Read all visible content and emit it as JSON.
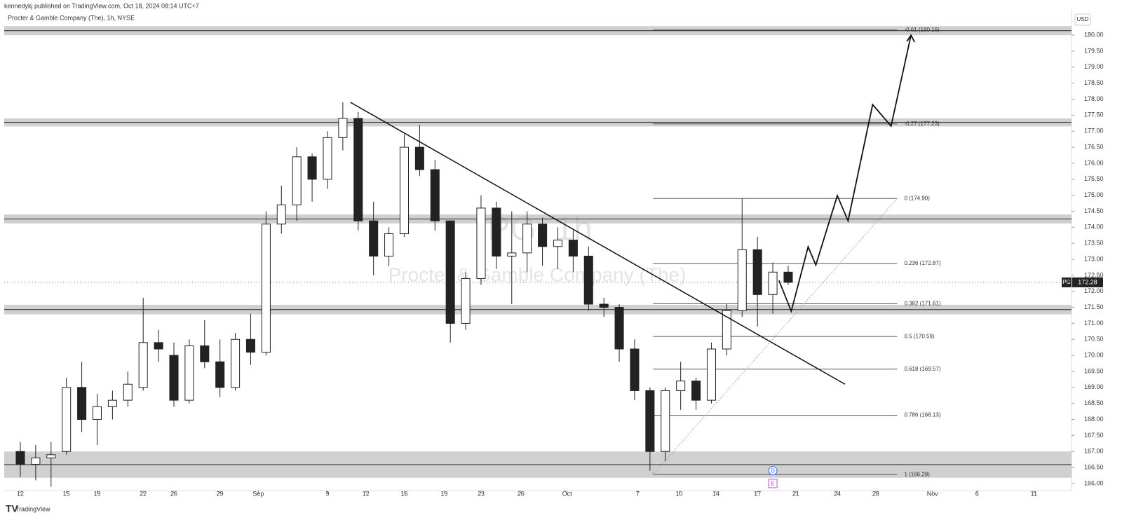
{
  "header": {
    "publisher": "kennedykj published on TradingView.com, Oct 18, 2024 08:14 UTC+7",
    "brand": "TradingView"
  },
  "chart_data": {
    "type": "candlestick",
    "title": "Procter & Gamble Company (The), 1h, NYSE",
    "watermark": "PG, 1h",
    "watermark_subtitle": "Procter & Gamble Company (The)",
    "currency": "USD",
    "symbol": "PG",
    "last_price": 172.28,
    "color_up": "#ffffff",
    "color_down": "#222222",
    "x": [
      0,
      1,
      2,
      3,
      4,
      5,
      6,
      7,
      8,
      9,
      10,
      11,
      12,
      13,
      14,
      15,
      16,
      17,
      18,
      19,
      20,
      21,
      22,
      23,
      24,
      25,
      26,
      27,
      28,
      29,
      30,
      31,
      32,
      33,
      34,
      35,
      36,
      37,
      38,
      39,
      40,
      41,
      42,
      43,
      44,
      45,
      46,
      47,
      48,
      49,
      50
    ],
    "open": [
      167,
      166.6,
      166.8,
      167,
      169,
      168,
      168.4,
      168.6,
      169,
      170.4,
      170,
      168.6,
      170.3,
      169.8,
      169,
      170.5,
      170.1,
      174.1,
      174.7,
      176.2,
      175.5,
      176.8,
      177.4,
      174.2,
      173.1,
      173.8,
      176.5,
      175.8,
      174.2,
      171,
      172.4,
      174.6,
      173.1,
      173.2,
      174.1,
      173.4,
      173.6,
      173.1,
      171.6,
      171.5,
      170.2,
      168.9,
      167,
      168.9,
      169.2,
      168.6,
      170.2,
      171.4,
      173.3,
      171.9,
      172.6
    ],
    "high": [
      167.3,
      167.2,
      167.3,
      169.3,
      169.8,
      168.8,
      168.9,
      169.5,
      171.8,
      170.8,
      170.4,
      170.5,
      171.1,
      170.5,
      170.7,
      171.3,
      174.5,
      175.3,
      176.5,
      176.3,
      177,
      177.9,
      177.6,
      174.8,
      174,
      176.9,
      177.2,
      176.1,
      174.2,
      172.6,
      175,
      174.8,
      174.5,
      174.5,
      174.3,
      174,
      173.9,
      173.4,
      171.8,
      171.6,
      170.5,
      169,
      169,
      169.8,
      169.3,
      170.4,
      171.6,
      174.9,
      173.7,
      172.9,
      172.8
    ],
    "low": [
      166.2,
      166.1,
      165.9,
      166.9,
      167.6,
      167.2,
      168,
      168.4,
      168.9,
      169.8,
      168.4,
      168.5,
      169.6,
      168.7,
      168.9,
      169.7,
      170,
      173.8,
      174.2,
      174.8,
      175.2,
      176.4,
      173.9,
      172.5,
      172.8,
      173.7,
      175.6,
      173.9,
      170.4,
      170.8,
      172.2,
      172.7,
      171.6,
      172.6,
      172.8,
      172.7,
      172.6,
      171.4,
      171.2,
      169.8,
      168.6,
      166.4,
      166.7,
      168.3,
      168.3,
      168.5,
      170,
      171.2,
      170.9,
      171.3,
      172.2
    ],
    "close": [
      166.6,
      166.8,
      166.9,
      169,
      168,
      168.4,
      168.6,
      169.1,
      170.4,
      170.2,
      168.6,
      170.3,
      169.8,
      169,
      170.5,
      170.1,
      174.1,
      174.7,
      176.2,
      175.5,
      176.8,
      177.4,
      174.2,
      173.1,
      173.8,
      176.5,
      175.8,
      174.2,
      171,
      172.4,
      174.6,
      173.1,
      173.2,
      174.1,
      173.4,
      173.6,
      173.1,
      171.6,
      171.5,
      170.2,
      168.9,
      167,
      168.9,
      169.2,
      168.6,
      170.2,
      171.4,
      173.3,
      171.9,
      172.6,
      172.28
    ],
    "xlim": [
      -1.05,
      68.45
    ],
    "xticks": [
      {
        "value": 0,
        "label": "12"
      },
      {
        "value": 3,
        "label": "15"
      },
      {
        "value": 5,
        "label": "19"
      },
      {
        "value": 8,
        "label": "22"
      },
      {
        "value": 10,
        "label": "26"
      },
      {
        "value": 13,
        "label": "29"
      },
      {
        "value": 15.5,
        "label": "Sep"
      },
      {
        "value": 20,
        "label": "9"
      },
      {
        "value": 22.5,
        "label": "12"
      },
      {
        "value": 25,
        "label": "16"
      },
      {
        "value": 27.6,
        "label": "19"
      },
      {
        "value": 30,
        "label": "23"
      },
      {
        "value": 32.6,
        "label": "26"
      },
      {
        "value": 35.6,
        "label": "Oct"
      },
      {
        "value": 40.2,
        "label": "7"
      },
      {
        "value": 42.9,
        "label": "10"
      },
      {
        "value": 45.3,
        "label": "14"
      },
      {
        "value": 48,
        "label": "17"
      },
      {
        "value": 50.5,
        "label": "21"
      },
      {
        "value": 53.2,
        "label": "24"
      },
      {
        "value": 55.7,
        "label": "28"
      },
      {
        "value": 59.4,
        "label": "Nov"
      },
      {
        "value": 62.3,
        "label": "6"
      },
      {
        "value": 66,
        "label": "11"
      }
    ],
    "ylim": [
      165.78,
      180.79
    ],
    "yticks": [
      {
        "value": 166,
        "label": "166.00"
      },
      {
        "value": 166.5,
        "label": "166.50"
      },
      {
        "value": 167,
        "label": "167.00"
      },
      {
        "value": 167.5,
        "label": "167.50"
      },
      {
        "value": 168,
        "label": "168.00"
      },
      {
        "value": 168.5,
        "label": "168.50"
      },
      {
        "value": 169,
        "label": "169.00"
      },
      {
        "value": 169.5,
        "label": "169.50"
      },
      {
        "value": 170,
        "label": "170.00"
      },
      {
        "value": 170.5,
        "label": "170.50"
      },
      {
        "value": 171,
        "label": "171.00"
      },
      {
        "value": 171.5,
        "label": "171.50"
      },
      {
        "value": 172,
        "label": "172.00"
      },
      {
        "value": 172.5,
        "label": "172.50"
      },
      {
        "value": 173,
        "label": "173.00"
      },
      {
        "value": 173.5,
        "label": "173.50"
      },
      {
        "value": 174,
        "label": "174.00"
      },
      {
        "value": 174.5,
        "label": "174.50"
      },
      {
        "value": 175,
        "label": "175.00"
      },
      {
        "value": 175.5,
        "label": "175.50"
      },
      {
        "value": 176,
        "label": "176.00"
      },
      {
        "value": 176.5,
        "label": "176.50"
      },
      {
        "value": 177,
        "label": "177.00"
      },
      {
        "value": 177.5,
        "label": "177.50"
      },
      {
        "value": 178,
        "label": "178.00"
      },
      {
        "value": 178.5,
        "label": "178.50"
      },
      {
        "value": 179,
        "label": "179.00"
      },
      {
        "value": 179.5,
        "label": "179.50"
      },
      {
        "value": 180,
        "label": "180.00"
      }
    ],
    "zones": [
      {
        "low": 180.0,
        "high": 180.28
      },
      {
        "low": 177.15,
        "high": 177.4
      },
      {
        "low": 174.12,
        "high": 174.4
      },
      {
        "low": 171.28,
        "high": 171.58
      },
      {
        "low": 166.18,
        "high": 167.0
      }
    ],
    "fib_x": [
      41.2,
      57.1
    ],
    "fib_levels": [
      {
        "value": 180.16,
        "label": "-0.61 (180.16)"
      },
      {
        "value": 177.23,
        "label": "-0.27 (177.23)"
      },
      {
        "value": 174.9,
        "label": "0 (174.90)"
      },
      {
        "value": 172.87,
        "label": "0.236 (172.87)"
      },
      {
        "value": 171.61,
        "label": "0.382 (171.61)"
      },
      {
        "value": 170.59,
        "label": "0.5 (170.59)"
      },
      {
        "value": 169.57,
        "label": "0.618 (169.57)"
      },
      {
        "value": 168.13,
        "label": "0.786 (168.13)"
      },
      {
        "value": 166.28,
        "label": "1 (166.28)"
      }
    ],
    "trendline": {
      "x": [
        21.5,
        53.7
      ],
      "y": [
        177.9,
        169.1
      ]
    },
    "projection": {
      "x": [
        49.4,
        50.2,
        51.3,
        51.8,
        53.2,
        53.9,
        55.5,
        56.7,
        58.0
      ],
      "y": [
        172.34,
        171.38,
        173.39,
        172.82,
        174.99,
        174.2,
        177.83,
        177.16,
        180.0
      ]
    },
    "events": [
      {
        "label": "D",
        "x": 49,
        "y": 166.4
      },
      {
        "label": "E",
        "x": 49,
        "y": 166.0
      }
    ]
  }
}
